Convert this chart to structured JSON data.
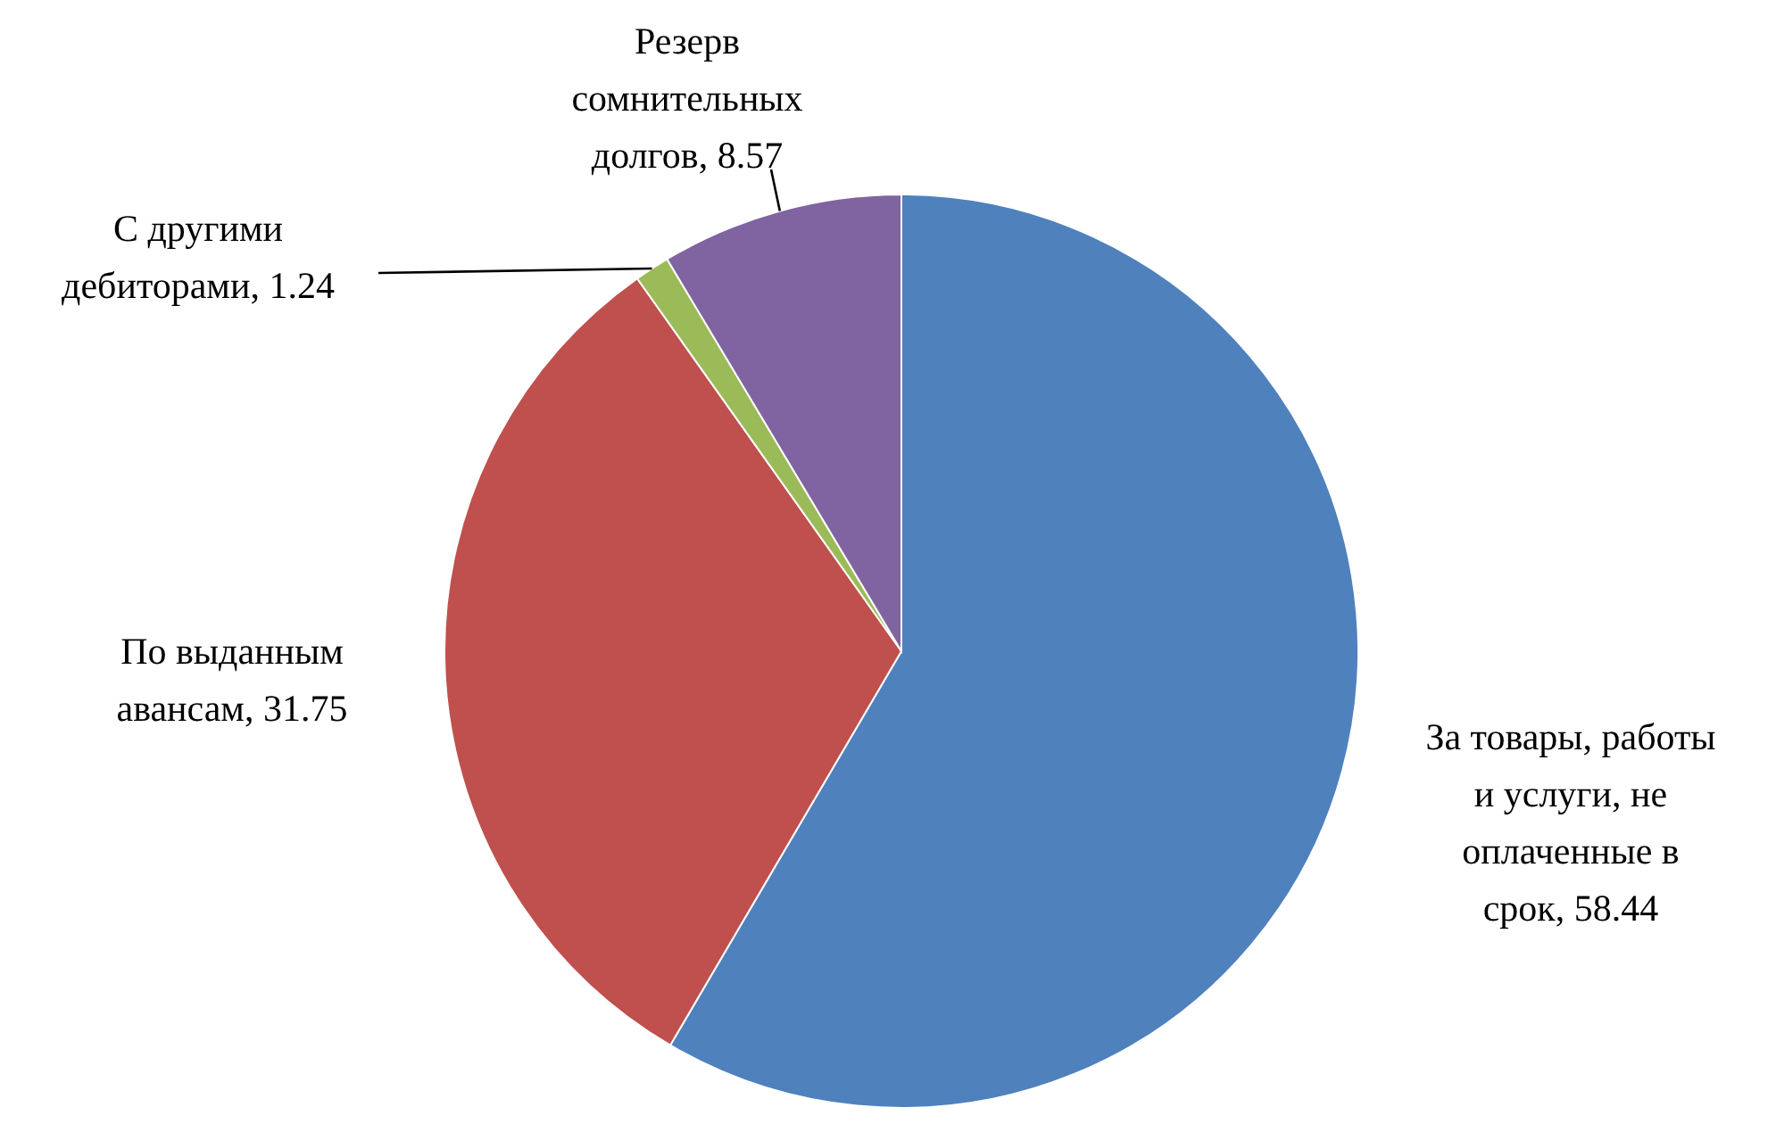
{
  "chart_data": {
    "type": "pie",
    "categories": [
      "За товары, работы и услуги, не оплаченные в срок",
      "По выданным авансам",
      "С другими дебиторами",
      "Резерв сомнительных долгов"
    ],
    "values": [
      58.44,
      31.75,
      1.24,
      8.57
    ],
    "colors": [
      "#4f81bd",
      "#c0504d",
      "#9bbb59",
      "#8064a2"
    ],
    "value_labels": [
      ", 58.44",
      ", 31.75",
      ", 1.24",
      ", 8.57"
    ],
    "legend": false
  }
}
